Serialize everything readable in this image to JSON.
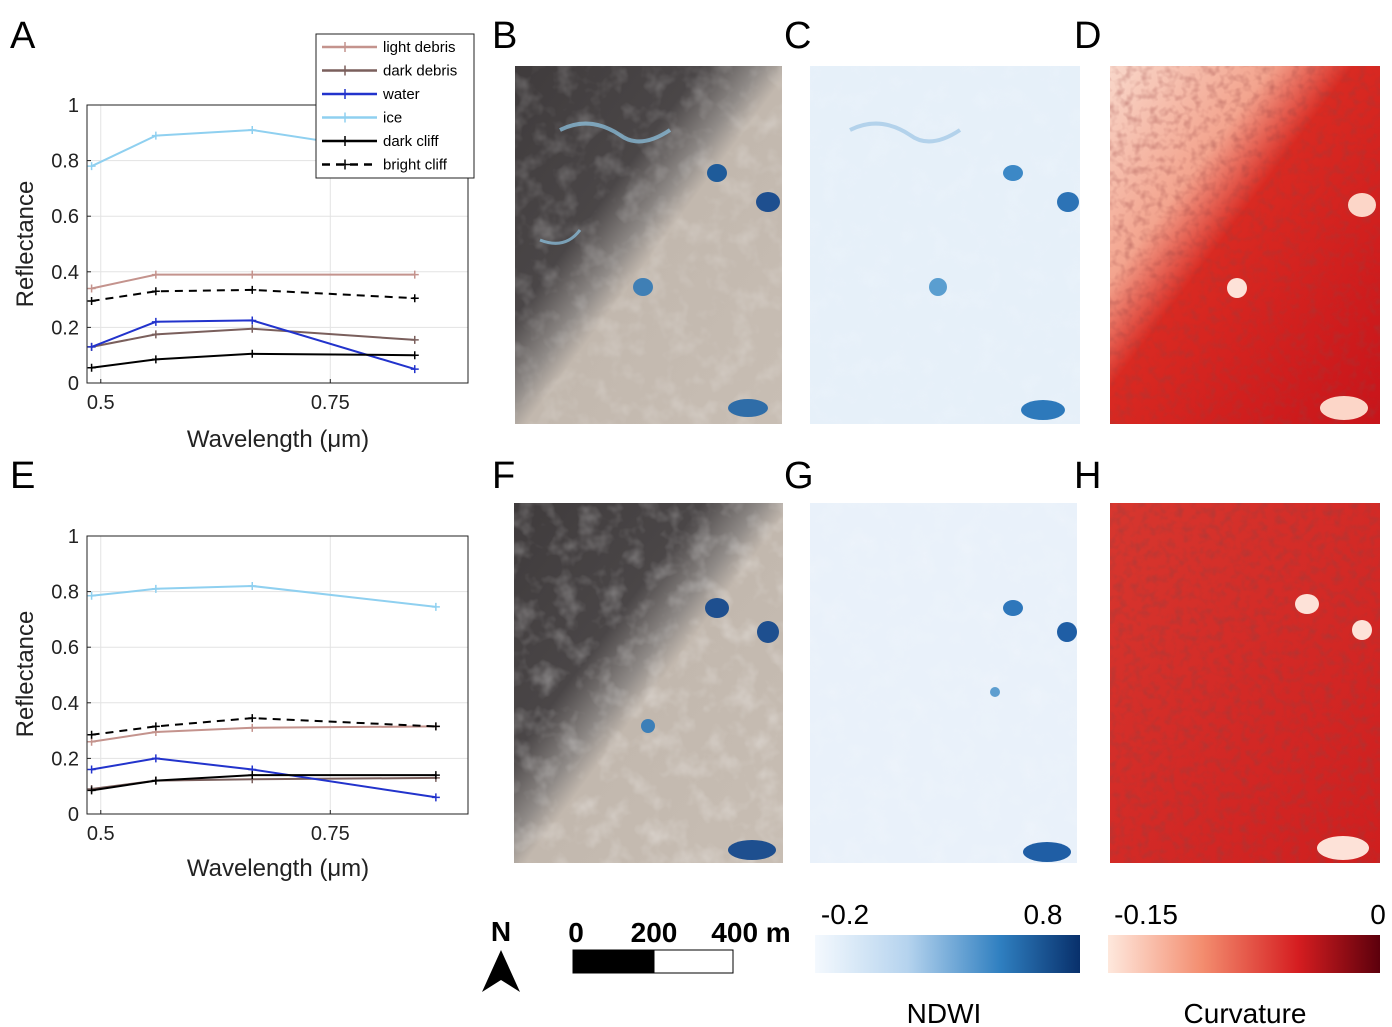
{
  "panel_letters": {
    "a": "A",
    "b": "B",
    "c": "C",
    "d": "D",
    "e": "E",
    "f": "F",
    "g": "G",
    "h": "H"
  },
  "legend": [
    "light debris",
    "dark debris",
    "water",
    "ice",
    "dark cliff",
    "bright cliff"
  ],
  "colors": {
    "light debris": "#c4938d",
    "dark debris": "#7a5f5c",
    "water": "#2233cc",
    "ice": "#8fd0f0",
    "dark cliff": "#000000",
    "bright cliff": "#000000"
  },
  "chart_data": [
    {
      "type": "line",
      "panel": "A",
      "xlabel": "Wavelength (μm)",
      "ylabel": "Reflectance",
      "xlim": [
        0.485,
        0.9
      ],
      "ylim": [
        0,
        1
      ],
      "xticks": [
        "0.5",
        "0.75"
      ],
      "yticks": [
        "0",
        "0.2",
        "0.4",
        "0.6",
        "0.8",
        "1"
      ],
      "grid": true,
      "legend_position": "top-right",
      "x": [
        0.49,
        0.56,
        0.665,
        0.842
      ],
      "series": [
        {
          "name": "light debris",
          "values": [
            0.34,
            0.39,
            0.39,
            0.39
          ]
        },
        {
          "name": "dark debris",
          "values": [
            0.13,
            0.175,
            0.195,
            0.155
          ]
        },
        {
          "name": "water",
          "values": [
            0.13,
            0.22,
            0.225,
            0.05
          ]
        },
        {
          "name": "ice",
          "values": [
            0.78,
            0.89,
            0.91,
            0.82
          ]
        },
        {
          "name": "dark cliff",
          "values": [
            0.055,
            0.085,
            0.105,
            0.1
          ]
        },
        {
          "name": "bright cliff",
          "values": [
            0.295,
            0.33,
            0.335,
            0.305
          ]
        }
      ]
    },
    {
      "type": "line",
      "panel": "E",
      "xlabel": "Wavelength (μm)",
      "ylabel": "Reflectance",
      "xlim": [
        0.485,
        0.9
      ],
      "ylim": [
        0,
        1
      ],
      "xticks": [
        "0.5",
        "0.75"
      ],
      "yticks": [
        "0",
        "0.2",
        "0.4",
        "0.6",
        "0.8",
        "1"
      ],
      "grid": true,
      "x": [
        0.49,
        0.56,
        0.665,
        0.865
      ],
      "series": [
        {
          "name": "light debris",
          "values": [
            0.26,
            0.295,
            0.31,
            0.315
          ]
        },
        {
          "name": "dark debris",
          "values": [
            0.09,
            0.12,
            0.125,
            0.13
          ]
        },
        {
          "name": "water",
          "values": [
            0.16,
            0.2,
            0.16,
            0.06
          ]
        },
        {
          "name": "ice",
          "values": [
            0.785,
            0.81,
            0.82,
            0.745
          ]
        },
        {
          "name": "dark cliff",
          "values": [
            0.085,
            0.12,
            0.14,
            0.14
          ]
        },
        {
          "name": "bright cliff",
          "values": [
            0.285,
            0.315,
            0.345,
            0.315
          ]
        }
      ]
    }
  ],
  "scale_bar": {
    "labels": [
      "0",
      "200",
      "400 m"
    ]
  },
  "north": "N",
  "colorbars": [
    {
      "name": "NDWI",
      "min": "-0.2",
      "max": "0.8",
      "low_color": "#f3f8fd",
      "high_color": "#0b2f86"
    },
    {
      "name": "Curvature",
      "min": "-0.15",
      "max": "0",
      "low_color": "#fde6dc",
      "high_color": "#6b0010"
    }
  ]
}
